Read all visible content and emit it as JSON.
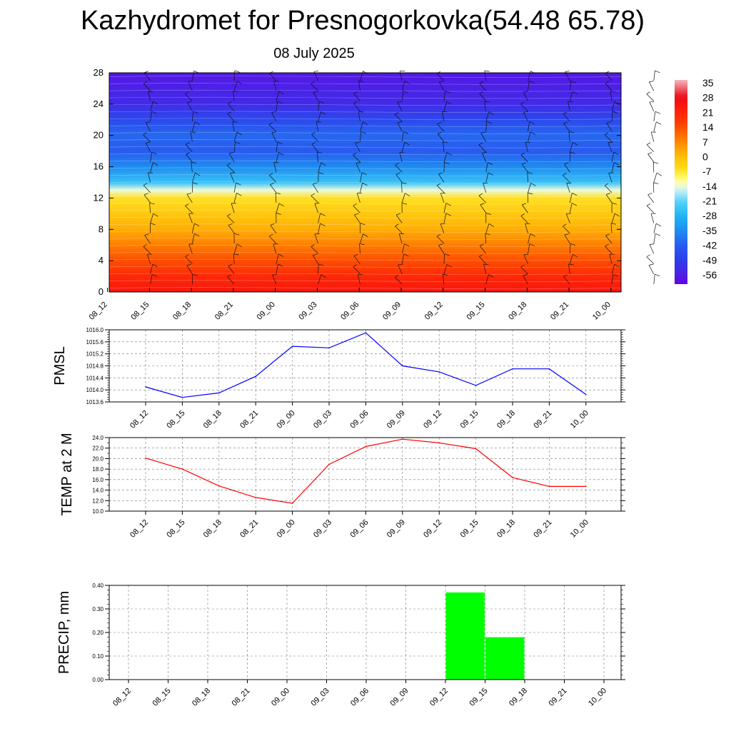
{
  "title": "Kazhydromet for Presnogorkovka(54.48 65.78)",
  "subtitle": "08 July 2025",
  "chart_data": [
    {
      "type": "heatmap",
      "categories": [
        "08_12",
        "08_15",
        "08_18",
        "08_21",
        "09_00",
        "09_03",
        "09_06",
        "09_09",
        "09_12",
        "09_15",
        "09_18",
        "09_21",
        "10_00"
      ],
      "y_ticks": [
        0,
        4,
        8,
        12,
        16,
        20,
        24,
        28
      ],
      "ylim": [
        0,
        28
      ],
      "colorbar_labels": [
        "35",
        "28",
        "21",
        "14",
        "7",
        "0",
        "-7",
        "-14",
        "-21",
        "-28",
        "-35",
        "-42",
        "-49",
        "-56"
      ],
      "levels": [
        0,
        2,
        4,
        6,
        8,
        10,
        12,
        13,
        14,
        16,
        18,
        20,
        22,
        24,
        26,
        28
      ],
      "temperature_by_level": [
        24,
        20,
        14,
        8,
        2,
        -2,
        -6,
        -14,
        -25,
        -35,
        -42,
        -40,
        -46,
        -53,
        -55,
        -57
      ]
    },
    {
      "type": "line",
      "ylabel": "PMSL",
      "categories": [
        "08_12",
        "08_15",
        "08_18",
        "08_21",
        "09_00",
        "09_03",
        "09_06",
        "09_09",
        "09_12",
        "09_15",
        "09_18",
        "09_21",
        "10_00"
      ],
      "values": [
        1014.1,
        1013.75,
        1013.9,
        1014.45,
        1015.45,
        1015.4,
        1015.9,
        1014.8,
        1014.6,
        1014.15,
        1014.7,
        1014.7,
        1013.85
      ],
      "ylim": [
        1013.6,
        1016.0
      ],
      "y_ticks": [
        "1013.6",
        "1014.0",
        "1014.4",
        "1014.8",
        "1015.2",
        "1015.6",
        "1016.0"
      ],
      "color": "#0000ff"
    },
    {
      "type": "line",
      "ylabel": "TEMP at 2 M",
      "categories": [
        "08_12",
        "08_15",
        "08_18",
        "08_21",
        "09_00",
        "09_03",
        "09_06",
        "09_09",
        "09_12",
        "09_15",
        "09_18",
        "09_21",
        "10_00"
      ],
      "values": [
        20.1,
        18.0,
        14.8,
        12.6,
        11.5,
        18.9,
        22.3,
        23.7,
        23.0,
        21.9,
        16.4,
        14.7,
        14.7
      ],
      "ylim": [
        10.0,
        24.0
      ],
      "y_ticks": [
        "10.0",
        "12.0",
        "14.0",
        "16.0",
        "18.0",
        "20.0",
        "22.0",
        "24.0"
      ],
      "color": "#ff0000"
    },
    {
      "type": "bar",
      "ylabel": "PRECIP, mm",
      "categories": [
        "08_12",
        "08_15",
        "08_18",
        "08_21",
        "09_00",
        "09_03",
        "09_06",
        "09_09",
        "09_12",
        "09_15",
        "09_18",
        "09_21",
        "10_00"
      ],
      "values": [
        0,
        0,
        0,
        0,
        0,
        0,
        0,
        0,
        0.37,
        0.18,
        0,
        0,
        0
      ],
      "ylim": [
        0,
        0.4
      ],
      "y_ticks": [
        "0.00",
        "0.10",
        "0.20",
        "0.30",
        "0.40"
      ],
      "color": "#00ff00"
    }
  ]
}
